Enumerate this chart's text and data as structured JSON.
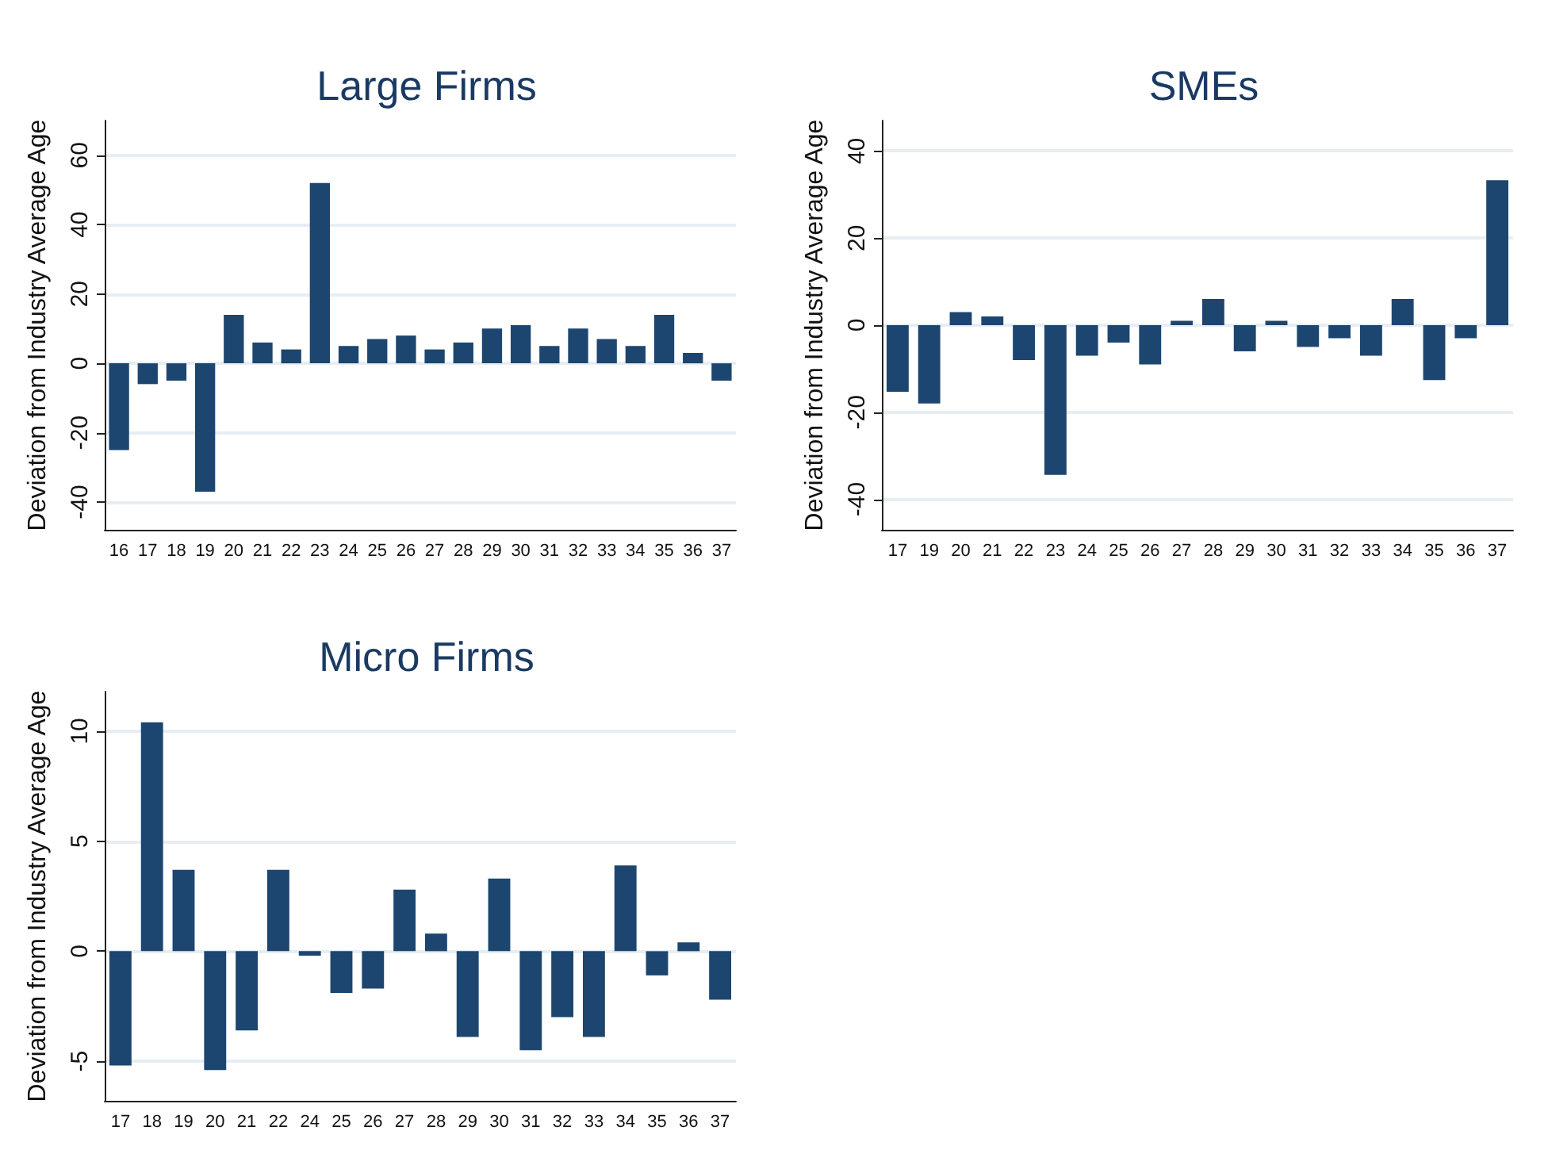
{
  "chart_data": [
    {
      "type": "bar",
      "title": "Large Firms",
      "ylabel": "Deviation from Industry Average Age",
      "categories": [
        "16",
        "17",
        "18",
        "19",
        "20",
        "21",
        "22",
        "23",
        "24",
        "25",
        "26",
        "27",
        "28",
        "29",
        "30",
        "31",
        "32",
        "33",
        "34",
        "35",
        "36",
        "37"
      ],
      "series": [
        {
          "color": "#1c4670",
          "values": [
            -25,
            -6,
            -5,
            -37,
            14,
            6,
            4,
            52,
            5,
            7,
            8,
            4,
            6,
            10,
            11,
            5,
            10,
            7,
            5,
            14,
            3,
            -5
          ]
        }
      ],
      "ylim": [
        -48,
        70
      ],
      "yticks": [
        -40,
        -20,
        0,
        20,
        40,
        60
      ],
      "grid": "y"
    },
    {
      "type": "bar",
      "title": "SMEs",
      "ylabel": "Deviation from Industry Average Age",
      "categories": [
        "17",
        "19",
        "20",
        "21",
        "22",
        "23",
        "24",
        "25",
        "26",
        "27",
        "28",
        "29",
        "30",
        "31",
        "32",
        "33",
        "34",
        "35",
        "36",
        "37"
      ],
      "series": [
        {
          "color": "#1c4670",
          "values": [
            -15.3,
            -18,
            3,
            2,
            -8,
            -34.4,
            -7,
            -4,
            -9,
            1,
            6,
            -6,
            1,
            -5,
            -3,
            -7,
            6,
            -12.6,
            -3,
            33.3
          ]
        }
      ],
      "ylim": [
        -47,
        47
      ],
      "yticks": [
        -40,
        -20,
        0,
        20,
        40
      ],
      "grid": "y"
    },
    {
      "type": "bar",
      "title": "Micro Firms",
      "ylabel": "Deviation from Industry Average Age",
      "categories": [
        "17",
        "18",
        "19",
        "20",
        "21",
        "22",
        "24",
        "25",
        "26",
        "27",
        "28",
        "29",
        "30",
        "31",
        "32",
        "33",
        "34",
        "35",
        "36",
        "37"
      ],
      "series": [
        {
          "color": "#1c4670",
          "values": [
            -5.2,
            10.4,
            3.7,
            -5.4,
            -3.6,
            3.7,
            -0.2,
            -1.9,
            -1.7,
            2.8,
            0.8,
            -3.9,
            3.3,
            -4.5,
            -3,
            -3.9,
            3.9,
            -1.1,
            0.4,
            -2.2
          ]
        }
      ],
      "ylim": [
        -6.8,
        11.8
      ],
      "yticks": [
        -5,
        0,
        5,
        10
      ],
      "grid": "y"
    }
  ]
}
